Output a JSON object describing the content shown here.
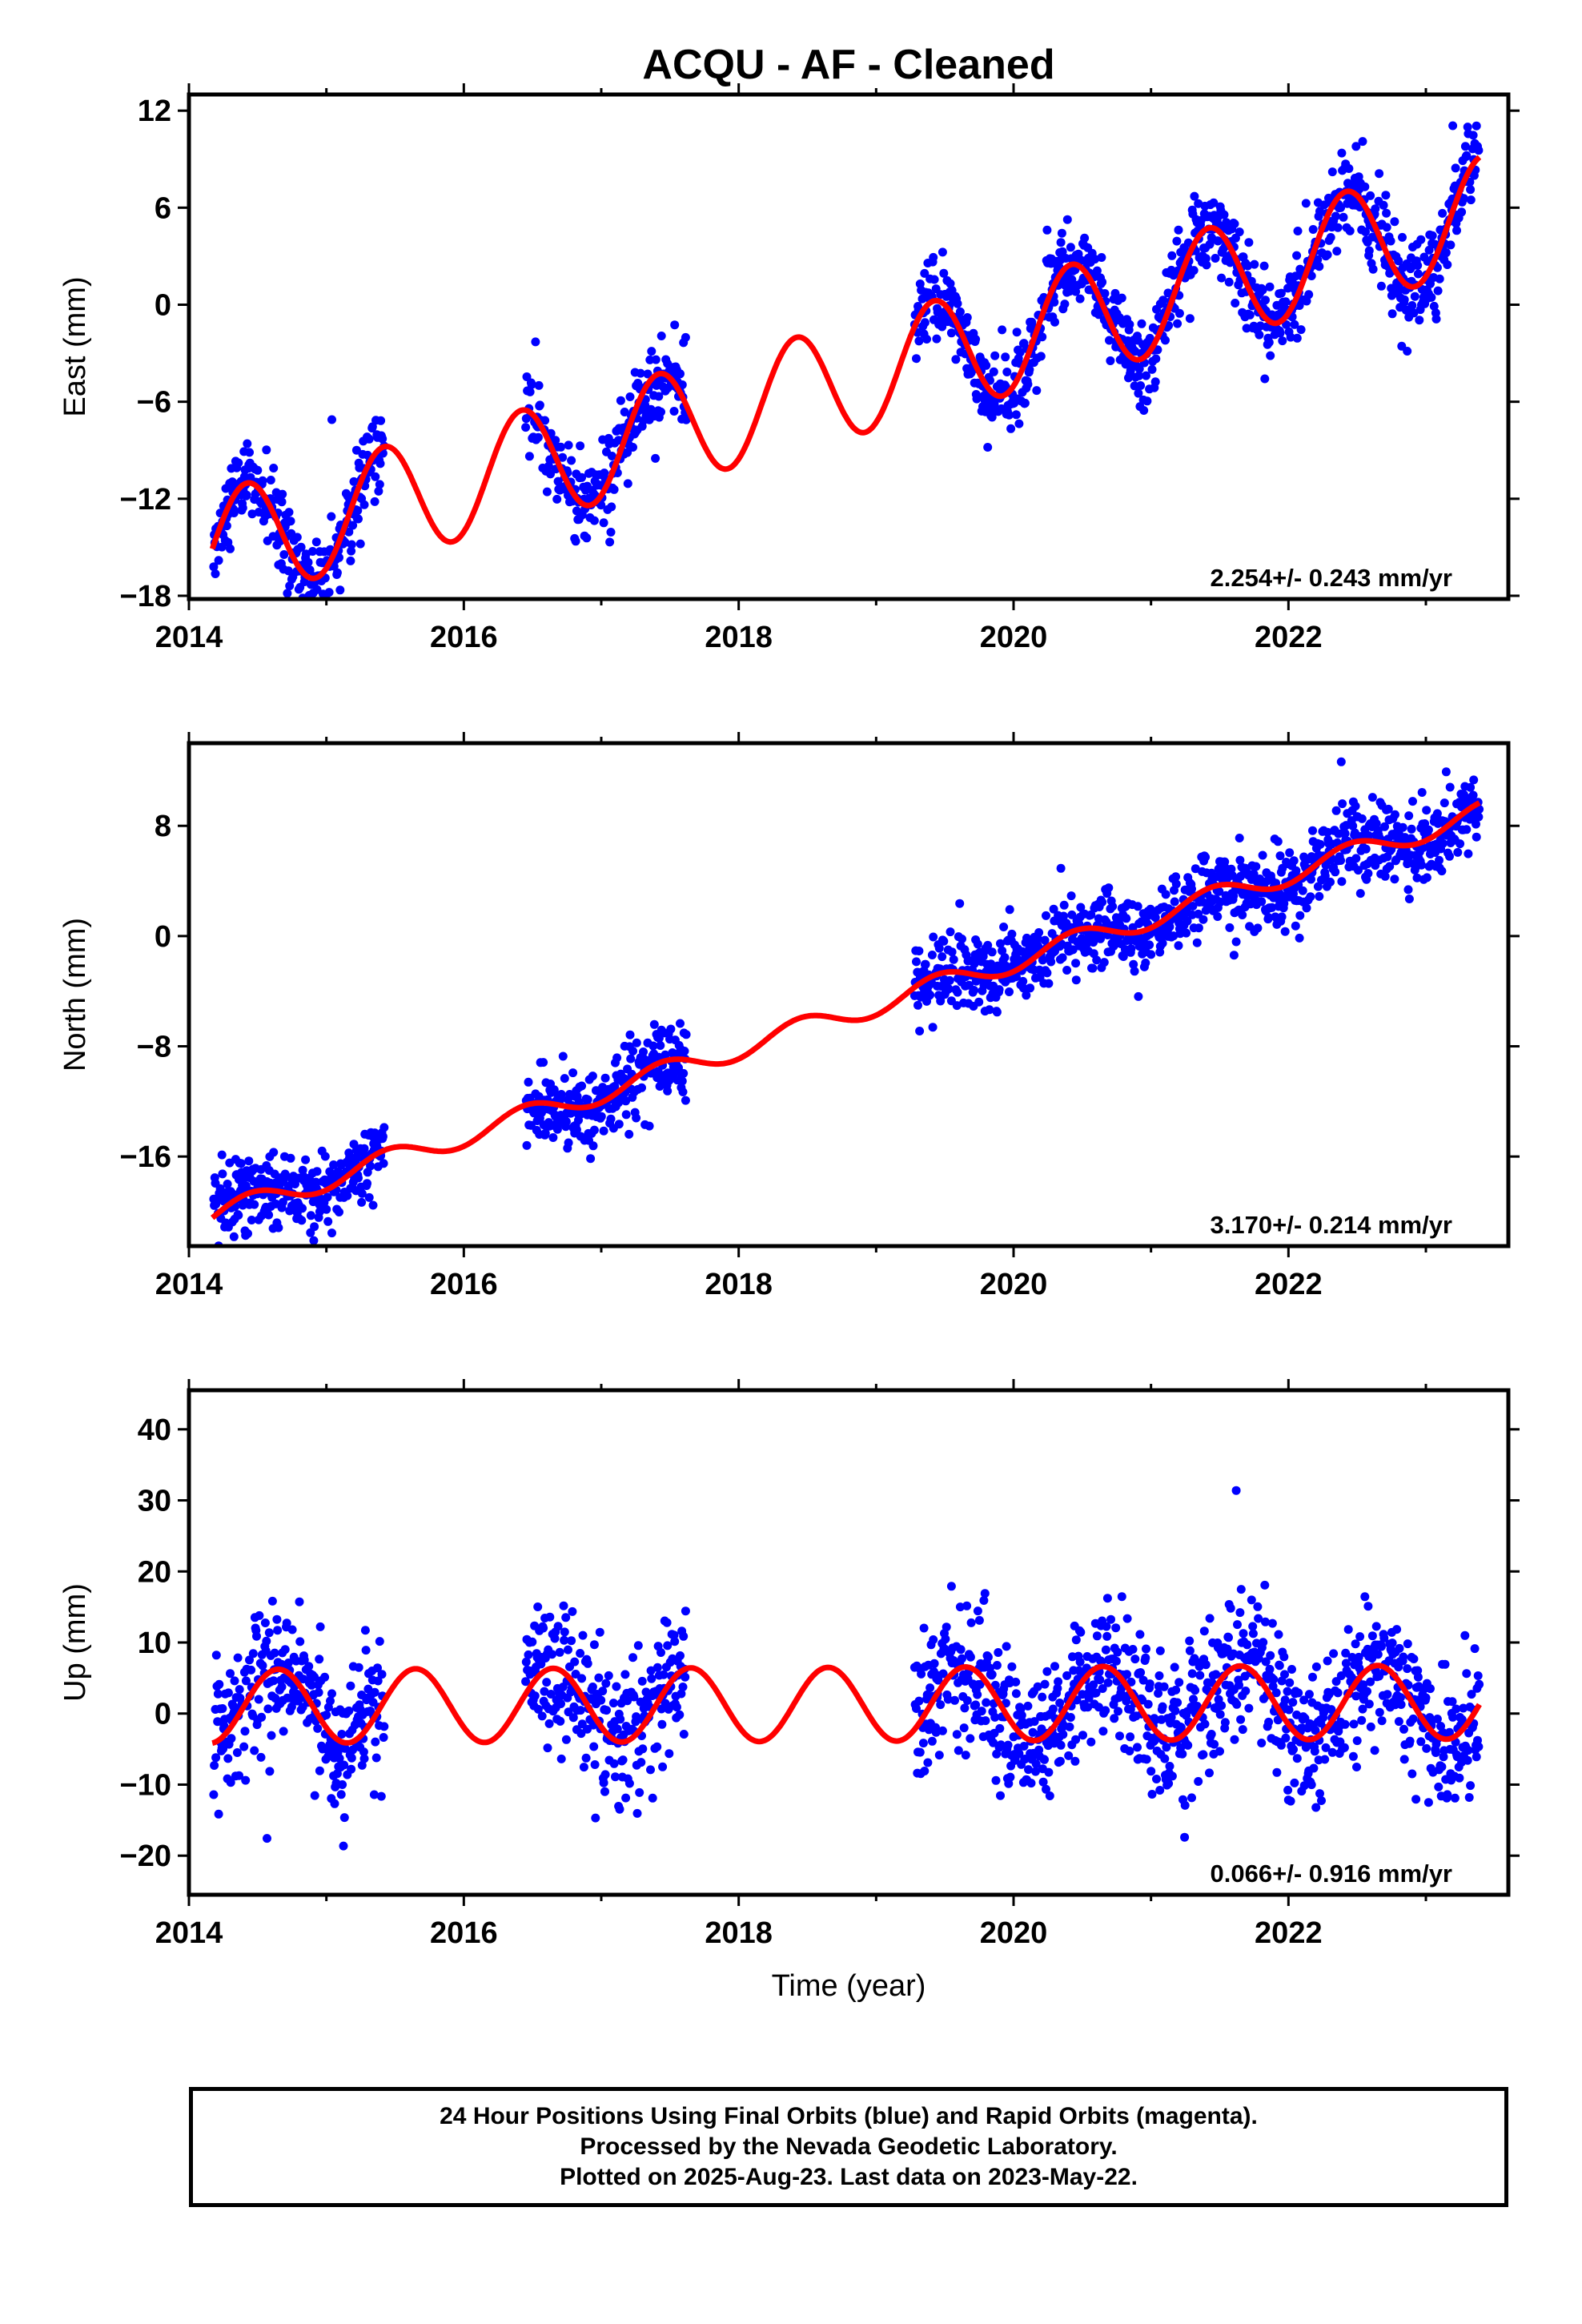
{
  "title": "ACQU  - AF - Cleaned",
  "colors": {
    "data": "#0000ff",
    "model": "#ff0000",
    "frame": "#000000"
  },
  "chart_data": [
    {
      "type": "scatter",
      "component": "east",
      "ylabel": "East (mm)",
      "xlabel": "",
      "xlim": [
        2014.0,
        2023.6
      ],
      "ylim": [
        -18.2,
        13.0
      ],
      "yticks": [
        12,
        6,
        0,
        -6,
        -12,
        -18
      ],
      "xticks": [
        2014,
        2016,
        2018,
        2020,
        2022
      ],
      "rate_label": "2.254+/- 0.243 mm/yr",
      "data_segments": [
        [
          2014.18,
          2015.42
        ],
        [
          2016.45,
          2017.62
        ],
        [
          2019.28,
          2023.39
        ]
      ],
      "model": {
        "x0": 2014.17,
        "y0": -15.1,
        "rate": 2.254,
        "amplitude": 3.5,
        "peak_phase": 0.42
      },
      "scatter_sigma": 1.3,
      "series": [
        {
          "name": "",
          "kind": "scatter",
          "color": "#0000ff"
        },
        {
          "name": "",
          "kind": "line",
          "color": "#ff0000"
        }
      ]
    },
    {
      "type": "scatter",
      "component": "north",
      "ylabel": "North (mm)",
      "xlabel": "",
      "xlim": [
        2014.0,
        2023.6
      ],
      "ylim": [
        -22.5,
        14.0
      ],
      "yticks": [
        8,
        0,
        -8,
        -16
      ],
      "xticks": [
        2014,
        2016,
        2018,
        2020,
        2022
      ],
      "rate_label": "3.170+/- 0.214 mm/yr",
      "data_segments": [
        [
          2014.18,
          2015.42
        ],
        [
          2016.45,
          2017.62
        ],
        [
          2019.28,
          2023.39
        ]
      ],
      "model": {
        "x0": 2014.17,
        "y0": -20.3,
        "rate": 3.17,
        "amplitude": 0.8,
        "peak_phase": 0.45
      },
      "scatter_sigma": 1.4,
      "series": [
        {
          "name": "",
          "kind": "scatter",
          "color": "#0000ff"
        },
        {
          "name": "",
          "kind": "line",
          "color": "#ff0000"
        }
      ]
    },
    {
      "type": "scatter",
      "component": "up",
      "ylabel": "Up (mm)",
      "xlabel": "Time (year)",
      "xlim": [
        2014.0,
        2023.6
      ],
      "ylim": [
        -25.5,
        45.5
      ],
      "yticks": [
        40,
        30,
        20,
        10,
        0,
        -10,
        -20
      ],
      "xticks": [
        2014,
        2016,
        2018,
        2020,
        2022
      ],
      "rate_label": "0.066+/- 0.916 mm/yr",
      "data_segments": [
        [
          2014.18,
          2015.42
        ],
        [
          2016.45,
          2017.62
        ],
        [
          2019.28,
          2023.39
        ]
      ],
      "model": {
        "x0": 2014.17,
        "y0": 1.0,
        "rate": 0.066,
        "amplitude": 5.2,
        "peak_phase": 0.65
      },
      "scatter_sigma": 5.0,
      "series": [
        {
          "name": "",
          "kind": "scatter",
          "color": "#0000ff"
        },
        {
          "name": "",
          "kind": "line",
          "color": "#ff0000"
        }
      ]
    }
  ],
  "footer": {
    "line1": "24 Hour Positions Using Final Orbits (blue) and Rapid Orbits (magenta).",
    "line2": "Processed by the Nevada Geodetic Laboratory.",
    "line3": "Plotted on 2025-Aug-23. Last data on 2023-May-22."
  }
}
